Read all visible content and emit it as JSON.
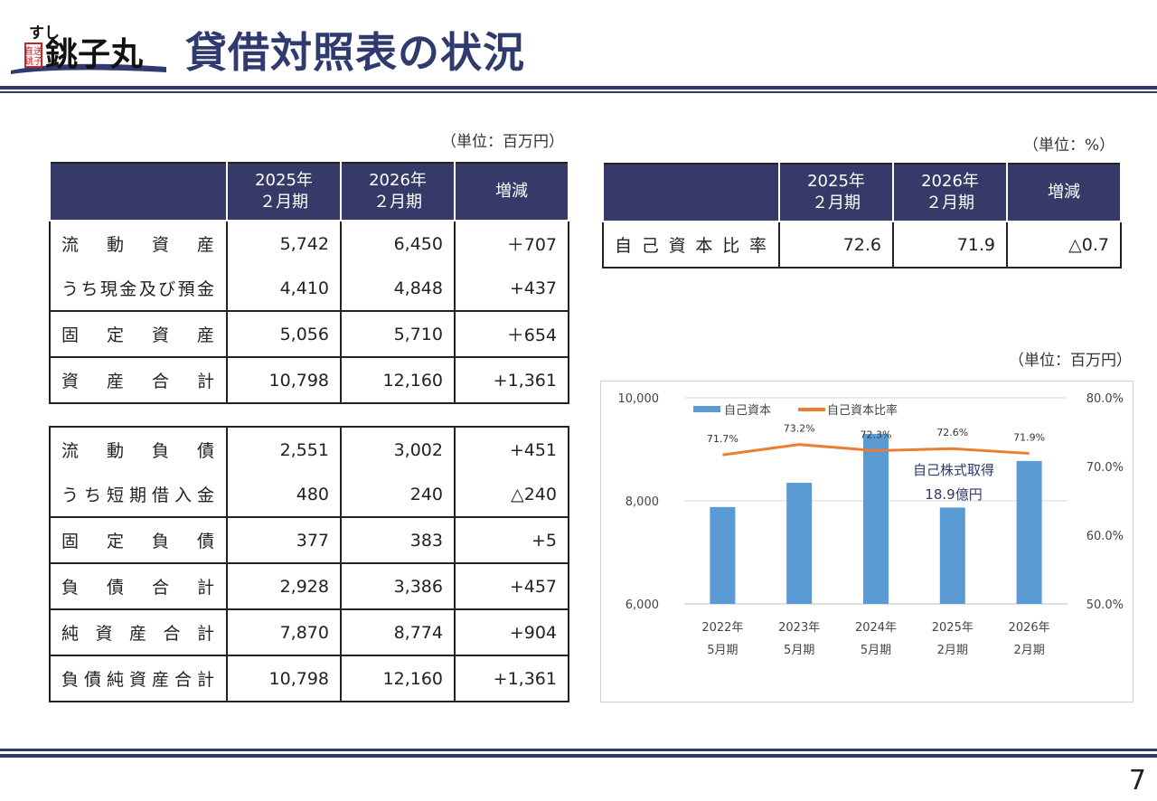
{
  "logo": {
    "small": "すし",
    "line": "直送",
    "line2": "銚子",
    "main": "銚子丸"
  },
  "page_title": "貸借対照表の状況",
  "assets_table": {
    "unit": "（単位：百万円）",
    "headers": [
      "",
      "2025年\n２月期",
      "2026年\n２月期",
      "増減"
    ],
    "groups": [
      {
        "rows": [
          {
            "label": "流動資産",
            "v1": "5,742",
            "v2": "6,450",
            "diff": "＋707"
          },
          {
            "label": "うち現金及び預金",
            "v1": "4,410",
            "v2": "4,848",
            "diff": "+437"
          }
        ]
      },
      {
        "rows": [
          {
            "label": "固定資産",
            "v1": "5,056",
            "v2": "5,710",
            "diff": "＋654"
          }
        ]
      },
      {
        "rows": [
          {
            "label": "資産合計",
            "v1": "10,798",
            "v2": "12,160",
            "diff": "+1,361"
          }
        ]
      }
    ]
  },
  "liabilities_table": {
    "groups": [
      {
        "rows": [
          {
            "label": "流動負債",
            "v1": "2,551",
            "v2": "3,002",
            "diff": "+451"
          },
          {
            "label": "うち短期借入金",
            "v1": "480",
            "v2": "240",
            "diff": "△240"
          }
        ]
      },
      {
        "rows": [
          {
            "label": "固定負債",
            "v1": "377",
            "v2": "383",
            "diff": "+5"
          }
        ]
      },
      {
        "rows": [
          {
            "label": "負債合計",
            "v1": "2,928",
            "v2": "3,386",
            "diff": "+457"
          }
        ]
      },
      {
        "rows": [
          {
            "label": "純資産合計",
            "v1": "7,870",
            "v2": "8,774",
            "diff": "+904"
          }
        ]
      },
      {
        "rows": [
          {
            "label": "負債純資産合計",
            "v1": "10,798",
            "v2": "12,160",
            "diff": "+1,361"
          }
        ]
      }
    ]
  },
  "ratio_table": {
    "unit": "（単位：%）",
    "headers": [
      "",
      "2025年\n２月期",
      "2026年\n２月期",
      "増減"
    ],
    "rows": [
      {
        "label": "自己資本比率",
        "v1": "72.6",
        "v2": "71.9",
        "diff": "△0.7"
      }
    ]
  },
  "chart_unit": "（単位：百万円）",
  "chart_data": {
    "type": "bar",
    "categories": [
      "2022年\n5月期",
      "2023年\n5月期",
      "2024年\n5月期",
      "2025年\n2月期",
      "2026年\n2月期"
    ],
    "series": [
      {
        "name": "自己資本",
        "type": "bar",
        "axis": "left",
        "values": [
          7880,
          8350,
          9300,
          7870,
          8774
        ],
        "color": "#5b9bd5"
      },
      {
        "name": "自己資本比率",
        "type": "line",
        "axis": "right",
        "values": [
          71.7,
          73.2,
          72.3,
          72.6,
          71.9
        ],
        "labels": [
          "71.7%",
          "73.2%",
          "72.3%",
          "72.6%",
          "71.9%"
        ],
        "color": "#ed7d31"
      }
    ],
    "y_left": {
      "min": 6000,
      "max": 10000,
      "ticks": [
        "6,000",
        "8,000",
        "10,000"
      ],
      "tick_values": [
        6000,
        8000,
        10000
      ]
    },
    "y_right": {
      "min": 50,
      "max": 80,
      "ticks": [
        "50.0%",
        "60.0%",
        "70.0%",
        "80.0%"
      ],
      "tick_values": [
        50,
        60,
        70,
        80
      ]
    },
    "annotation": {
      "line1": "自己株式取得",
      "line2": "18.9億円"
    },
    "legend_position": "top"
  },
  "page_number": "7"
}
